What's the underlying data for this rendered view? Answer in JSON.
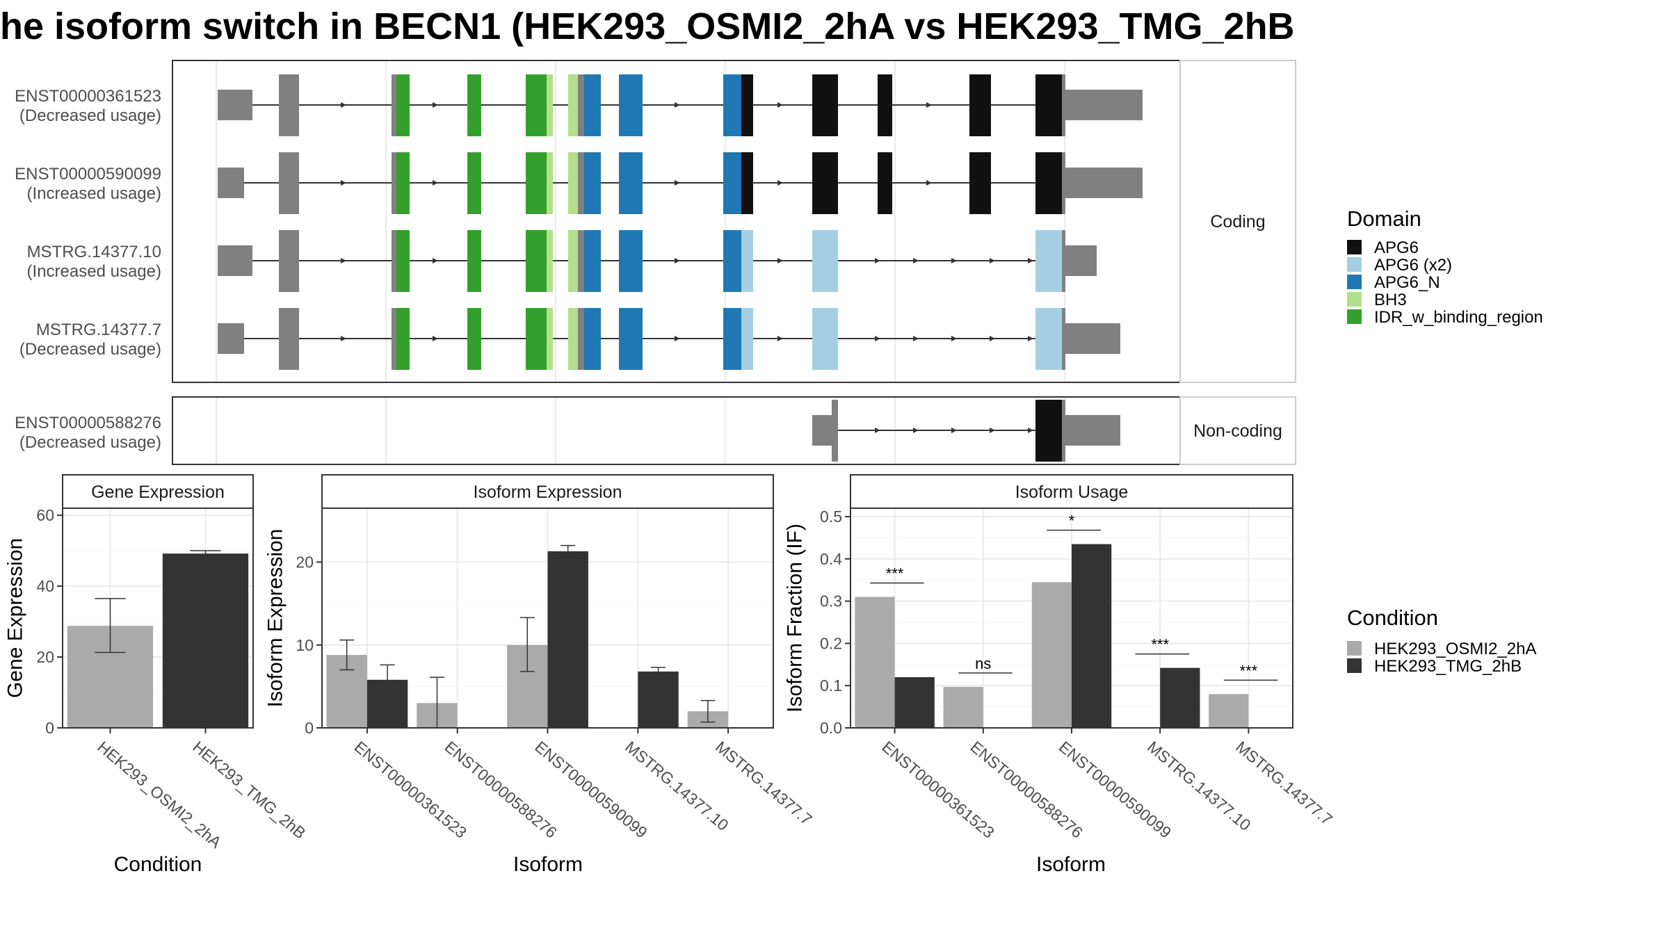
{
  "title": "he isoform switch in BECN1 (HEK293_OSMI2_2hA vs HEK293_TMG_2hB",
  "colors": {
    "APG6": "#111111",
    "APG6 (x2)": "#A6CEE3",
    "APG6_N": "#1F78B4",
    "BH3": "#B2DF8A",
    "IDR_w_binding_region": "#33A02C",
    "noncoding_exon": "#808080",
    "condition_a": "#AAAAAA",
    "condition_b": "#333333"
  },
  "transcript_panel": {
    "coding_strip_label": "Coding",
    "noncoding_strip_label": "Non-coding",
    "coding": [
      {
        "id": "ENST00000361523",
        "note": "(Decreased usage)"
      },
      {
        "id": "ENST00000590099",
        "note": "(Increased usage)"
      },
      {
        "id": "MSTRG.14377.10",
        "note": "(Increased usage)"
      },
      {
        "id": "MSTRG.14377.7",
        "note": "(Decreased usage)"
      }
    ],
    "noncoding": [
      {
        "id": "ENST00000588276",
        "note": "(Decreased usage)"
      }
    ]
  },
  "domain_legend": {
    "title": "Domain",
    "items": [
      "APG6",
      "APG6 (x2)",
      "APG6_N",
      "BH3",
      "IDR_w_binding_region"
    ]
  },
  "condition_legend": {
    "title": "Condition",
    "items": [
      "HEK293_OSMI2_2hA",
      "HEK293_TMG_2hB"
    ]
  },
  "chart_data": [
    {
      "type": "bar",
      "panel_title": "Gene Expression",
      "xlabel": "Condition",
      "ylabel": "Gene Expression",
      "ylim": [
        0,
        62
      ],
      "yticks": [
        0,
        20,
        40,
        60
      ],
      "categories": [
        "HEK293_OSMI2_2hA",
        "HEK293_TMG_2hB"
      ],
      "series": [
        {
          "values": [
            28.8,
            49.2
          ],
          "err_low": [
            21.3,
            48.3
          ],
          "err_high": [
            36.5,
            50.0
          ]
        }
      ]
    },
    {
      "type": "bar",
      "panel_title": "Isoform Expression",
      "xlabel": "Isoform",
      "ylabel": "Isoform Expression",
      "ylim": [
        0,
        26.5
      ],
      "yticks": [
        0,
        10,
        20
      ],
      "categories": [
        "ENST00000361523",
        "ENST00000588276",
        "ENST00000590099",
        "MSTRG.14377.10",
        "MSTRG.14377.7"
      ],
      "series": [
        {
          "name": "HEK293_OSMI2_2hA",
          "values": [
            8.8,
            3.0,
            10.0,
            0.0,
            2.0
          ],
          "err_low": [
            7.0,
            0.0,
            6.8,
            0.0,
            0.7
          ],
          "err_high": [
            10.6,
            6.1,
            13.3,
            0.0,
            3.3
          ]
        },
        {
          "name": "HEK293_TMG_2hB",
          "values": [
            5.8,
            0.0,
            21.3,
            6.8,
            0.0
          ],
          "err_low": [
            3.9,
            0.0,
            20.6,
            6.3,
            0.0
          ],
          "err_high": [
            7.6,
            0.0,
            22.0,
            7.3,
            0.0
          ]
        }
      ]
    },
    {
      "type": "bar",
      "panel_title": "Isoform Usage",
      "xlabel": "Isoform",
      "ylabel": "Isoform Fraction (IF)",
      "ylim": [
        0,
        0.52
      ],
      "yticks": [
        0.0,
        0.1,
        0.2,
        0.3,
        0.4,
        0.5
      ],
      "categories": [
        "ENST00000361523",
        "ENST00000588276",
        "ENST00000590099",
        "MSTRG.14377.10",
        "MSTRG.14377.7"
      ],
      "series": [
        {
          "name": "HEK293_OSMI2_2hA",
          "values": [
            0.31,
            0.097,
            0.345,
            0.0,
            0.08
          ]
        },
        {
          "name": "HEK293_TMG_2hB",
          "values": [
            0.12,
            0.0,
            0.435,
            0.142,
            0.0
          ]
        }
      ],
      "significance": [
        "***",
        "ns",
        "*",
        "***",
        "***"
      ]
    }
  ]
}
